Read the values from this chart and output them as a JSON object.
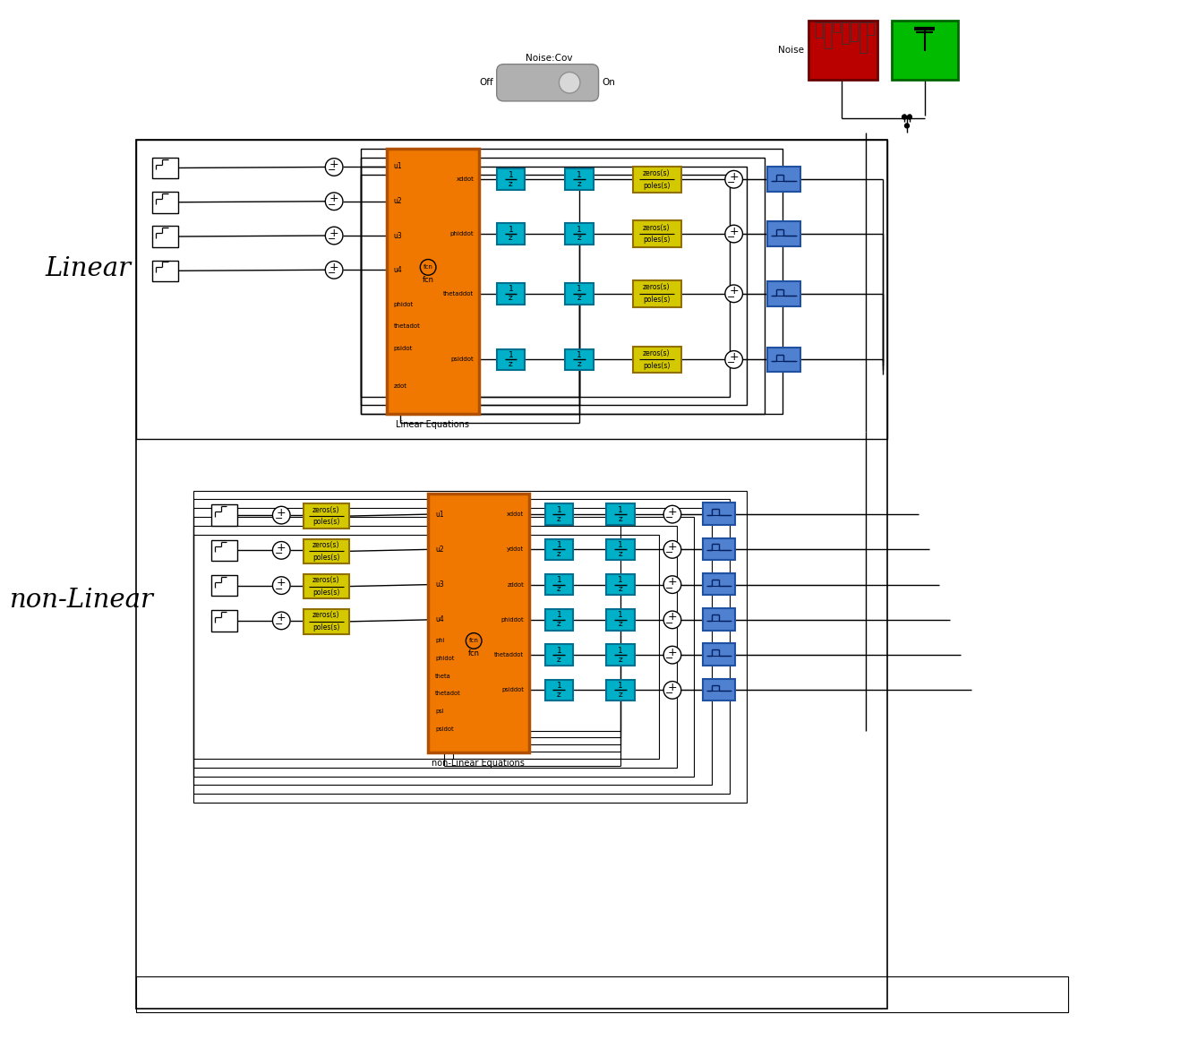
{
  "bg_color": "#ffffff",
  "linear_label": "Linear",
  "nonlinear_label": "non-Linear",
  "noise_label": "Noise",
  "noise_cov_label": "Noise:Cov",
  "off_label": "Off",
  "on_label": "On",
  "orange_color": "#f07800",
  "cyan_color": "#00b0c8",
  "yellow_color": "#d4c800",
  "red_color": "#cc0000",
  "green_color": "#00bb00",
  "blue_color": "#5080d0",
  "linear_eq_label": "Linear Equations",
  "nonlinear_eq_label": "non-Linear Equations",
  "integrator_label": "1\nz",
  "zeros_label": "zeros(s)",
  "poles_label": "poles(s)",
  "fcn_label": "fcn",
  "lin_in_ports": [
    "u1",
    "u2",
    "u3",
    "u4"
  ],
  "lin_out_ports": [
    "xddot",
    "phiddot",
    "thetaddot",
    "psiddot",
    "zdot"
  ],
  "lin_feed_ports": [
    "phidot",
    "thetadot",
    "psidot",
    "zdot"
  ],
  "nl_in_ports": [
    "u1",
    "u2",
    "u3",
    "u4",
    "phi",
    "phidot",
    "theta",
    "thetadot",
    "psi",
    "psidot"
  ],
  "nl_out_ports": [
    "xddot",
    "yddot",
    "zddot",
    "phiddot",
    "thetaddot",
    "psiddot"
  ]
}
